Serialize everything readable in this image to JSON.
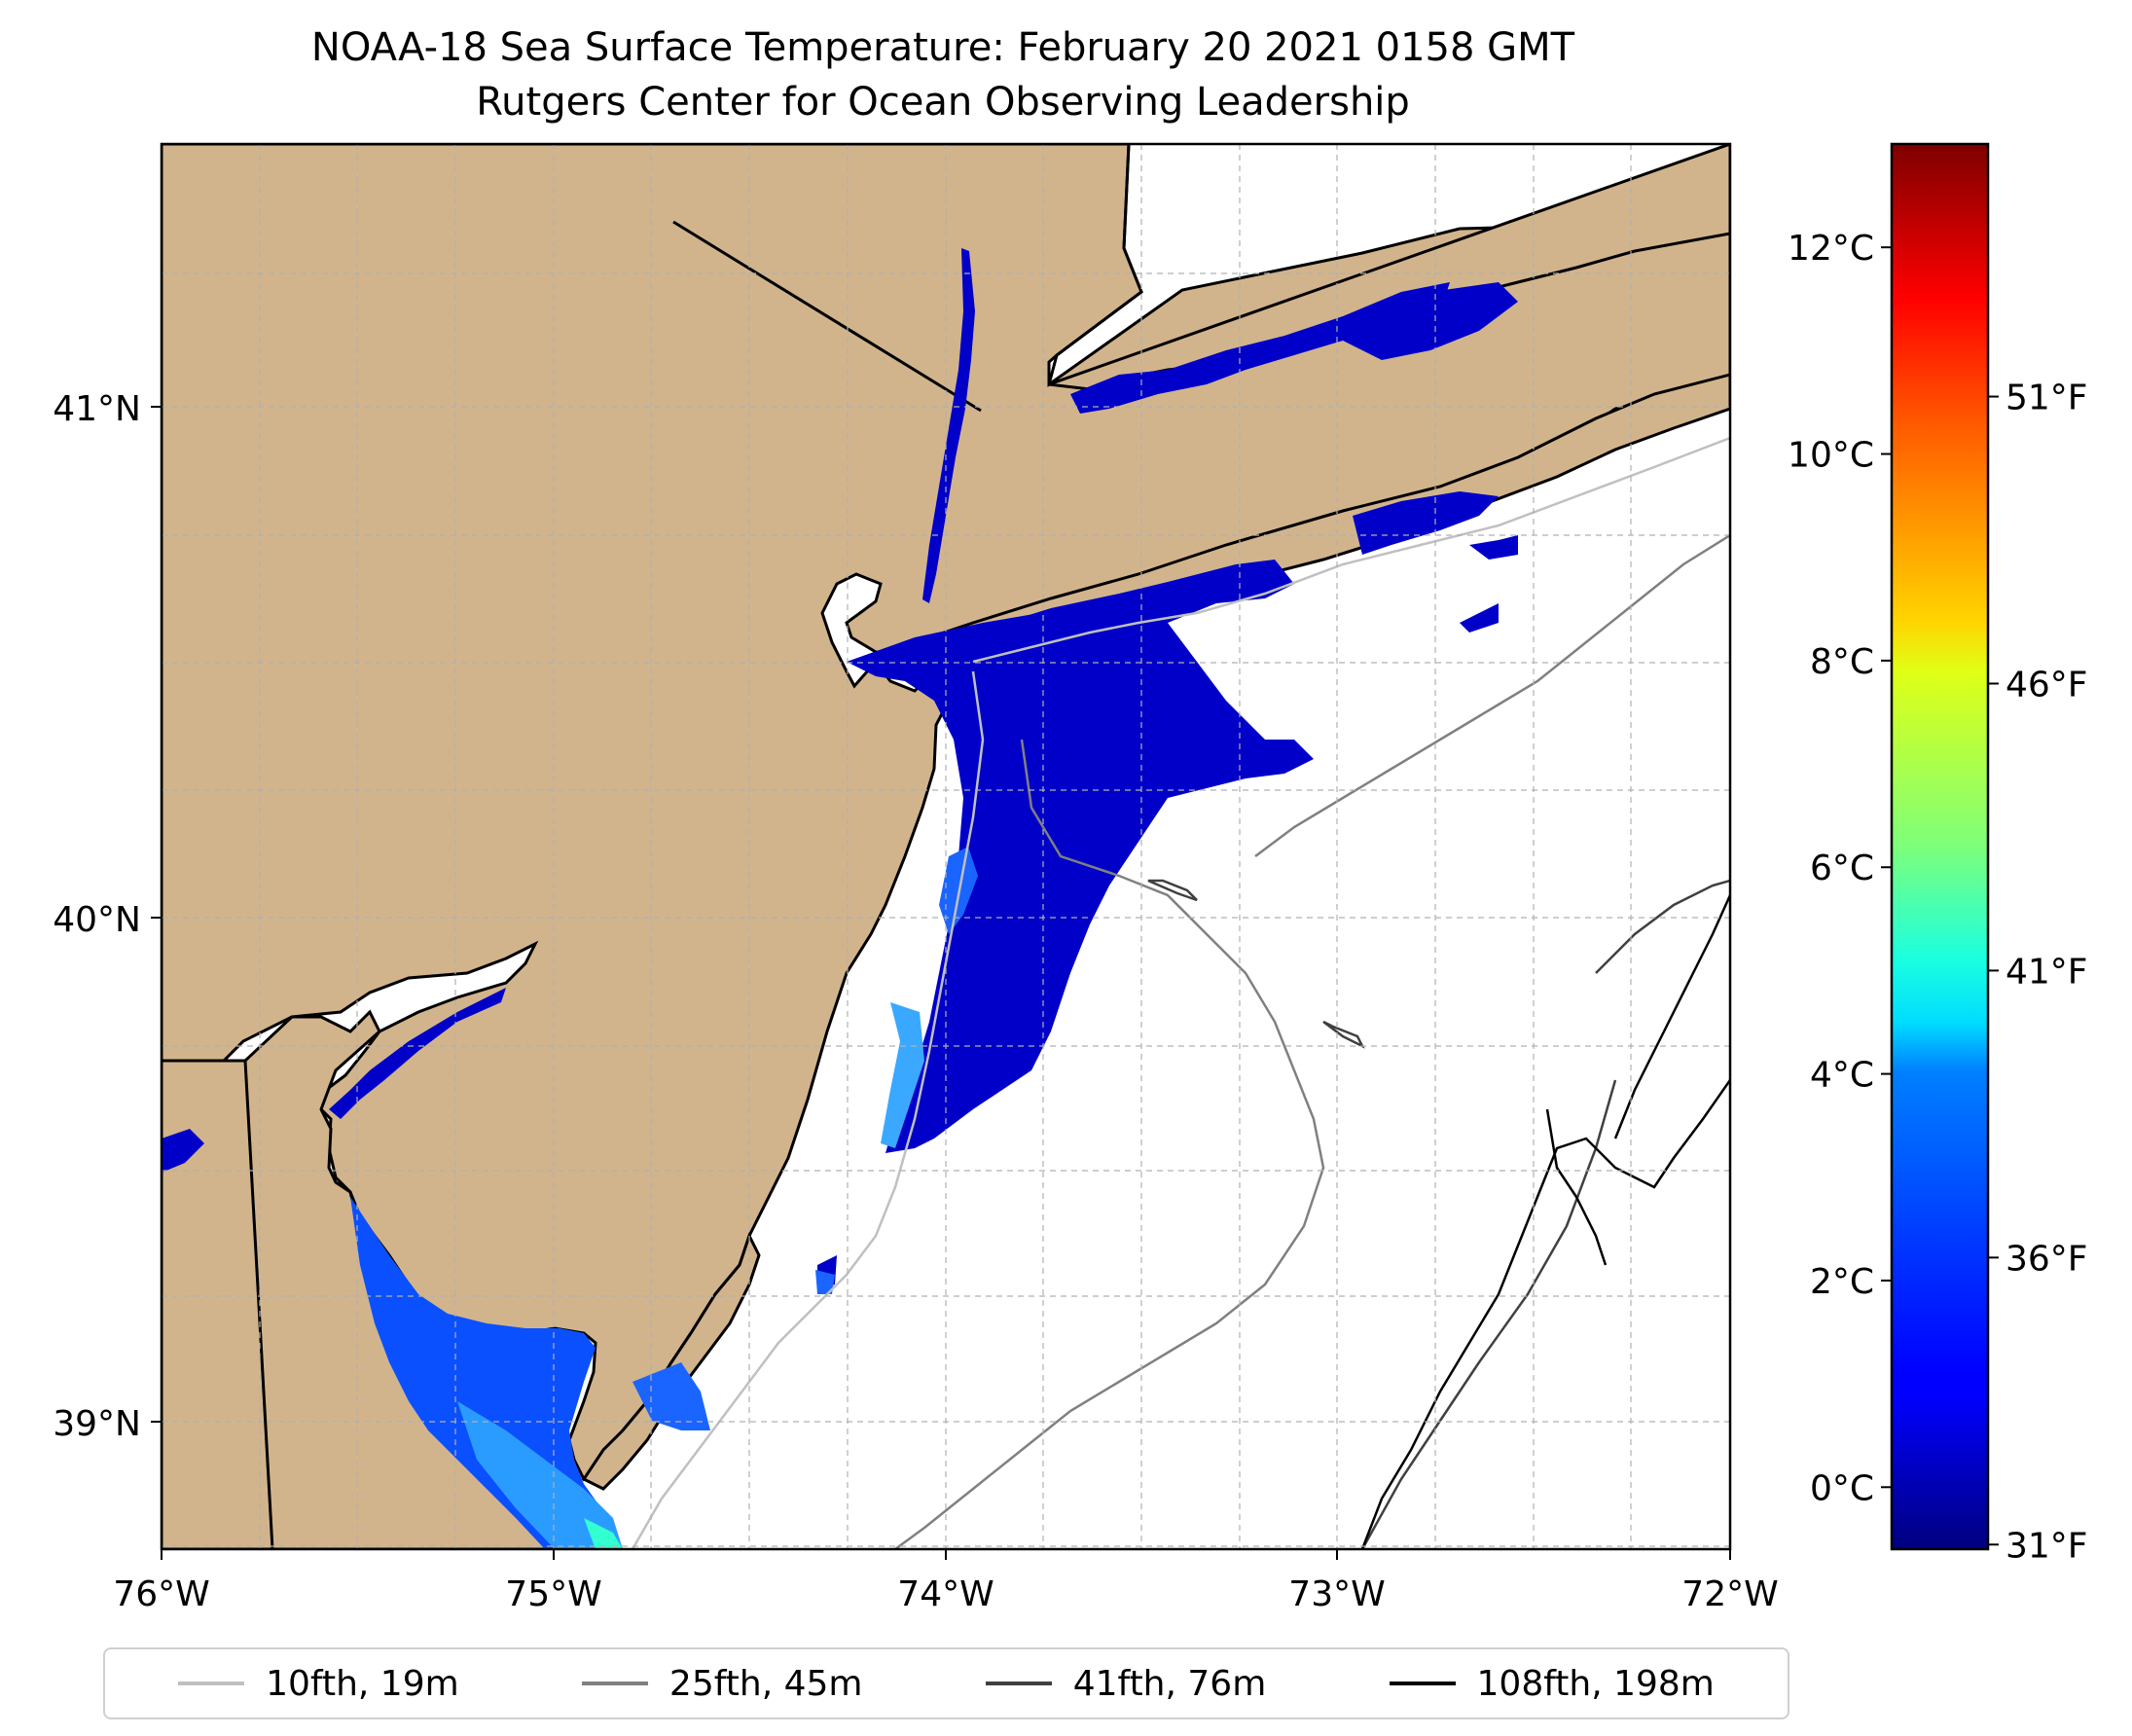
{
  "title": {
    "line1": "NOAA-18 Sea Surface Temperature: February 20 2021 0158 GMT",
    "line2": "Rutgers Center for Ocean Observing Leadership"
  },
  "map": {
    "lon_range": [
      -76,
      -72
    ],
    "lat_range": [
      38.73,
      41.53
    ],
    "x_ticks": [
      "76°W",
      "75°W",
      "74°W",
      "73°W",
      "72°W"
    ],
    "y_ticks": [
      "39°N",
      "40°N",
      "41°N"
    ],
    "land_color": "#d2b48c",
    "sea_color": "#ffffff",
    "sst_primary_color": "#0000c8",
    "gridlines": true
  },
  "colorbar": {
    "colormap": "jet",
    "celsius_ticks": [
      "0°C",
      "2°C",
      "4°C",
      "6°C",
      "8°C",
      "10°C",
      "12°C"
    ],
    "celsius_values": [
      0,
      2,
      4,
      6,
      8,
      10,
      12
    ],
    "fahrenheit_ticks": [
      "31°F",
      "36°F",
      "41°F",
      "46°F",
      "51°F"
    ],
    "fahrenheit_values": [
      31,
      36,
      41,
      46,
      51
    ],
    "range_celsius": [
      -0.6,
      13
    ]
  },
  "legend": {
    "items": [
      {
        "label": "10fth, 19m",
        "color": "#c0c0c0"
      },
      {
        "label": "25fth, 45m",
        "color": "#808080"
      },
      {
        "label": "41fth, 76m",
        "color": "#404040"
      },
      {
        "label": "108fth, 198m",
        "color": "#000000"
      }
    ]
  }
}
